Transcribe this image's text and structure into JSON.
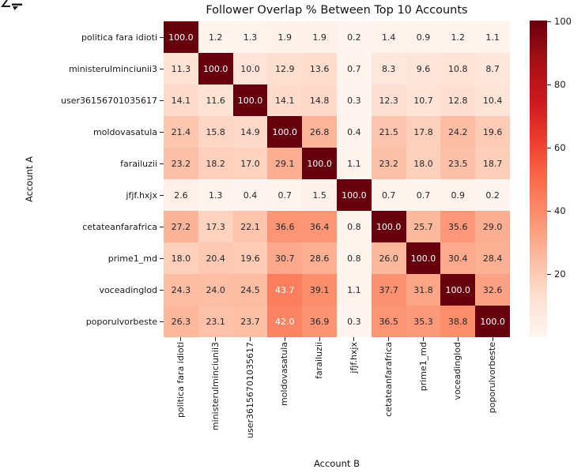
{
  "figure": {
    "background_color": "#ffffff",
    "corner_artifact": "clipped-glyph-top-left"
  },
  "chart_data": {
    "type": "heatmap",
    "title": "Follower Overlap % Between Top 10 Accounts",
    "xlabel": "Account B",
    "ylabel": "Account A",
    "colormap": "Reds",
    "colormap_stops": [
      "#fff5f0",
      "#fee0d2",
      "#fcbba1",
      "#fc9272",
      "#fb6a4a",
      "#ef3b2c",
      "#cb181d",
      "#a50f15",
      "#67000d"
    ],
    "value_min": 0,
    "value_max": 100,
    "annotation_format": "one_decimal",
    "accounts": [
      "politica fara idioti",
      "ministerulminciunii3",
      "user36156701035617",
      "moldovasatula",
      "farailuzii",
      "jfjf.hxjx",
      "cetateanfarafrica",
      "prime1_md",
      "voceadinglod",
      "poporulvorbeste"
    ],
    "values": [
      [
        100.0,
        1.2,
        1.3,
        1.9,
        1.9,
        0.2,
        1.4,
        0.9,
        1.2,
        1.1
      ],
      [
        11.3,
        100.0,
        10.0,
        12.9,
        13.6,
        0.7,
        8.3,
        9.6,
        10.8,
        8.7
      ],
      [
        14.1,
        11.6,
        100.0,
        14.1,
        14.8,
        0.3,
        12.3,
        10.7,
        12.8,
        10.4
      ],
      [
        21.4,
        15.8,
        14.9,
        100.0,
        26.8,
        0.4,
        21.5,
        17.8,
        24.2,
        19.6
      ],
      [
        23.2,
        18.2,
        17.0,
        29.1,
        100.0,
        1.1,
        23.2,
        18.0,
        23.5,
        18.7
      ],
      [
        2.6,
        1.3,
        0.4,
        0.7,
        1.5,
        100.0,
        0.7,
        0.7,
        0.9,
        0.2
      ],
      [
        27.2,
        17.3,
        22.1,
        36.6,
        36.4,
        0.8,
        100.0,
        25.7,
        35.6,
        29.0
      ],
      [
        18.0,
        20.4,
        19.6,
        30.7,
        28.6,
        0.8,
        26.0,
        100.0,
        30.4,
        28.4
      ],
      [
        24.3,
        24.0,
        24.5,
        43.7,
        39.1,
        1.1,
        37.7,
        31.8,
        100.0,
        32.6
      ],
      [
        26.3,
        23.1,
        23.7,
        42.0,
        36.9,
        0.3,
        36.5,
        35.3,
        38.8,
        100.0
      ]
    ],
    "colorbar": {
      "position": "right",
      "min": 0,
      "max": 100,
      "ticks": [
        20,
        40,
        60,
        80,
        100
      ]
    },
    "annotation_dark_color": "#262626",
    "annotation_light_color": "#ffffff",
    "grid": false,
    "x_tick_rotation_deg": 90
  }
}
